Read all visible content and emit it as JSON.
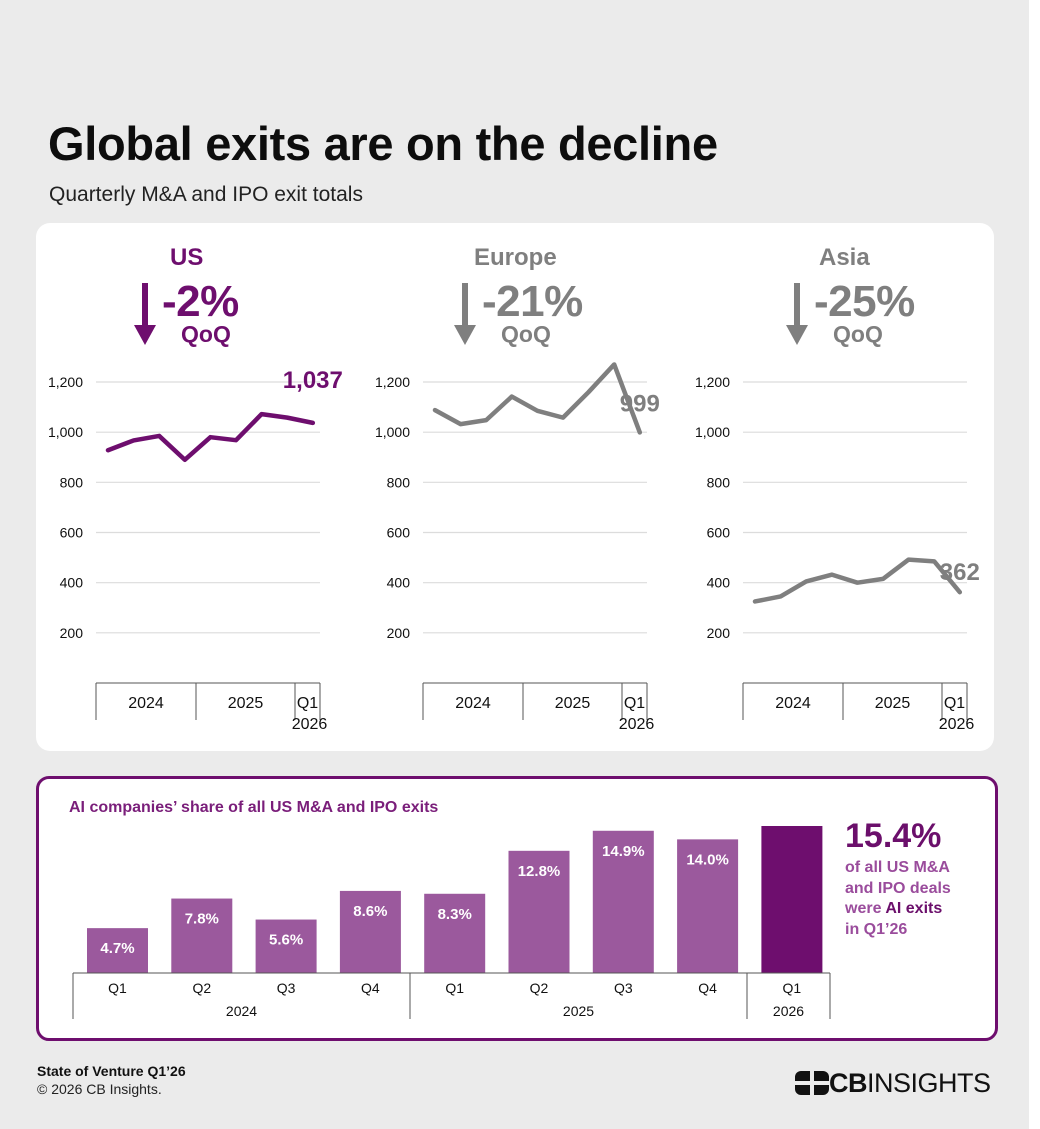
{
  "title": "Global exits are on the decline",
  "subtitle": "Quarterly M&A and IPO exit totals",
  "colors": {
    "us": "#6e0e6e",
    "gray": "#7f7f7f",
    "bar": "#9b599d",
    "bar_highlight": "#6e0e6e"
  },
  "regions": [
    {
      "name": "US",
      "change": "-2%",
      "qoq_label": "QoQ",
      "color": "#6e0e6e",
      "last_label": "1,037"
    },
    {
      "name": "Europe",
      "change": "-21%",
      "qoq_label": "QoQ",
      "color": "#7f7f7f",
      "last_label": "999"
    },
    {
      "name": "Asia",
      "change": "-25%",
      "qoq_label": "QoQ",
      "color": "#7f7f7f",
      "last_label": "362"
    }
  ],
  "chart_data": [
    {
      "type": "line",
      "title": "US",
      "x": [
        "Q1 2024",
        "Q2 2024",
        "Q3 2024",
        "Q4 2024",
        "Q1 2025",
        "Q2 2025",
        "Q3 2025",
        "Q4 2025",
        "Q1 2026"
      ],
      "values": [
        928,
        967,
        985,
        890,
        980,
        968,
        1072,
        1058,
        1037
      ],
      "y_ticks": [
        "200",
        "400",
        "600",
        "800",
        "1,000",
        "1,200"
      ],
      "ylim": [
        0,
        1200
      ],
      "year_labels": [
        "2024",
        "2025",
        "Q1",
        "2026"
      ]
    },
    {
      "type": "line",
      "title": "Europe",
      "x": [
        "Q1 2024",
        "Q2 2024",
        "Q3 2024",
        "Q4 2024",
        "Q1 2025",
        "Q2 2025",
        "Q3 2025",
        "Q4 2025",
        "Q1 2026"
      ],
      "values": [
        1088,
        1032,
        1048,
        1142,
        1085,
        1058,
        1160,
        1270,
        999
      ],
      "y_ticks": [
        "200",
        "400",
        "600",
        "800",
        "1,000",
        "1,200"
      ],
      "ylim": [
        0,
        1200
      ],
      "year_labels": [
        "2024",
        "2025",
        "Q1",
        "2026"
      ]
    },
    {
      "type": "line",
      "title": "Asia",
      "x": [
        "Q1 2024",
        "Q2 2024",
        "Q3 2024",
        "Q4 2024",
        "Q1 2025",
        "Q2 2025",
        "Q3 2025",
        "Q4 2025",
        "Q1 2026"
      ],
      "values": [
        325,
        345,
        405,
        432,
        400,
        415,
        492,
        485,
        362
      ],
      "y_ticks": [
        "200",
        "400",
        "600",
        "800",
        "1,000",
        "1,200"
      ],
      "ylim": [
        0,
        1200
      ],
      "year_labels": [
        "2024",
        "2025",
        "Q1",
        "2026"
      ]
    },
    {
      "type": "bar",
      "title": "AI companies’ share of all US M&A and IPO exits",
      "categories": [
        "Q1",
        "Q2",
        "Q3",
        "Q4",
        "Q1",
        "Q2",
        "Q3",
        "Q4",
        "Q1"
      ],
      "values": [
        4.7,
        7.8,
        5.6,
        8.6,
        8.3,
        12.8,
        14.9,
        14.0,
        15.4
      ],
      "labels": [
        "4.7%",
        "7.8%",
        "5.6%",
        "8.6%",
        "8.3%",
        "12.8%",
        "14.9%",
        "14.0%",
        ""
      ],
      "years": [
        "2024",
        "2025",
        "2026"
      ],
      "highlight_index": 8
    }
  ],
  "ai_callout": {
    "value": "15.4%",
    "line1": "of all US M&A",
    "line2": "and IPO deals",
    "line3_pre": "were ",
    "line3_hl": "AI exits",
    "line4": "in Q1’26"
  },
  "footer": {
    "title": "State of Venture Q1’26",
    "copyright": "© 2026 CB Insights."
  },
  "logo": {
    "text": "CBINSIGHTS",
    "icon": "cb-logo-icon"
  }
}
